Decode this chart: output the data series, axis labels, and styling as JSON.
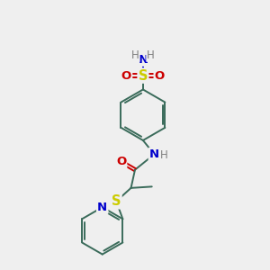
{
  "bg_color": "#efefef",
  "bond_color": "#3a6b5a",
  "bond_width": 1.4,
  "atom_colors": {
    "N": "#0000cc",
    "O": "#cc0000",
    "S": "#cccc00",
    "H": "#808080"
  },
  "font_size": 9.5,
  "label_bg": "#efefef",
  "fig_size": [
    3.0,
    3.0
  ],
  "dpi": 100,
  "xlim": [
    0,
    10
  ],
  "ylim": [
    0,
    10
  ]
}
